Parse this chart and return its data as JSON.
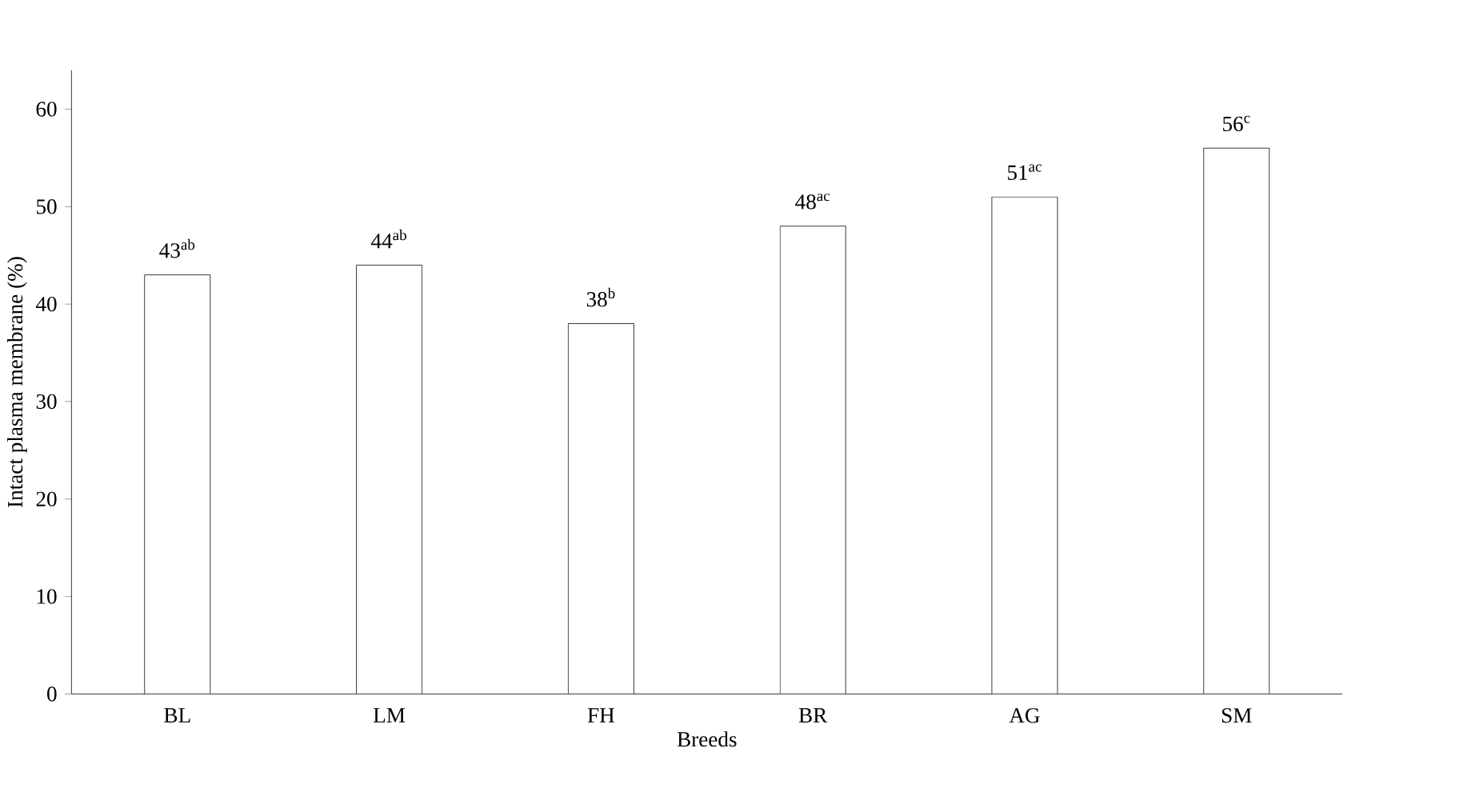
{
  "chart_data": {
    "type": "bar",
    "xlabel": "Breeds",
    "ylabel": "Intact plasma membrane (%)",
    "categories": [
      "BL",
      "LM",
      "FH",
      "BR",
      "AG",
      "SM"
    ],
    "values": [
      43,
      44,
      38,
      48,
      51,
      56
    ],
    "value_labels": [
      "43$^{ab}$",
      "44$^{ab}$",
      "38$^{b}$",
      "48$^{ac}$",
      "51$^{ac}$",
      "56$^{c}$"
    ],
    "color": "#ffffff",
    "ylim": [
      0,
      64
    ],
    "yticks": [
      0,
      10,
      20,
      30,
      40,
      50,
      60
    ]
  }
}
